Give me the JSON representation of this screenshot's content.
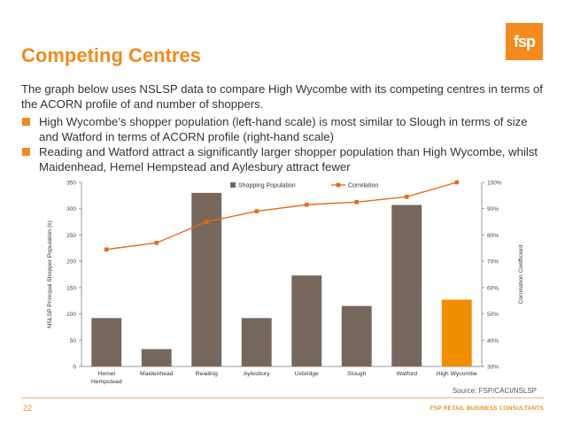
{
  "logo": {
    "text": "fsp"
  },
  "title": "Competing Centres",
  "intro": "The graph below uses NSLSP data to compare High Wycombe with its competing centres in terms of the ACORN profile of and number of shoppers.",
  "bullets": [
    "High Wycombe’s shopper population (left-hand scale) is most similar to Slough in terms of size and Watford in terms of ACORN profile (right-hand scale)",
    "Reading and Watford attract a significantly larger shopper population than High Wycombe, whilst Maidenhead, Hemel Hempstead and Aylesbury attract fewer"
  ],
  "chart_data": {
    "type": "bar",
    "categories": [
      "Hemel Hempstead",
      "Maidenhead",
      "Reading",
      "Aylesbury",
      "Uxbridge",
      "Slough",
      "Watford",
      "High Wycombe"
    ],
    "series": [
      {
        "name": "Shopping Population",
        "type": "bar",
        "axis": "left",
        "values": [
          92,
          33,
          330,
          92,
          173,
          115,
          307,
          127
        ]
      },
      {
        "name": "Correlation",
        "type": "line",
        "axis": "right",
        "values": [
          74.5,
          77,
          85,
          89,
          91.5,
          92.5,
          94.5,
          100
        ]
      }
    ],
    "ylabel": "NSLSP Principal Shopper Population (k)",
    "ylim": [
      0,
      350
    ],
    "yticks": [
      "0",
      "50",
      "100",
      "150",
      "200",
      "250",
      "300",
      "350"
    ],
    "y2label": "Correlation Coefficient",
    "y2lim": [
      30,
      100
    ],
    "y2ticks": [
      "30%",
      "40%",
      "50%",
      "60%",
      "70%",
      "80%",
      "90%",
      "100%"
    ],
    "legend_position": "top",
    "grid": false,
    "colors": {
      "bar": "#76675d",
      "highlight_bar": "#f18e00",
      "line": "#e46c1a"
    },
    "highlight_category": "High Wycombe"
  },
  "source": "Source: FSP/CACI/NSLSP",
  "page_number": "22",
  "company": "FSP RETAIL BUSINESS CONSULTANTS"
}
